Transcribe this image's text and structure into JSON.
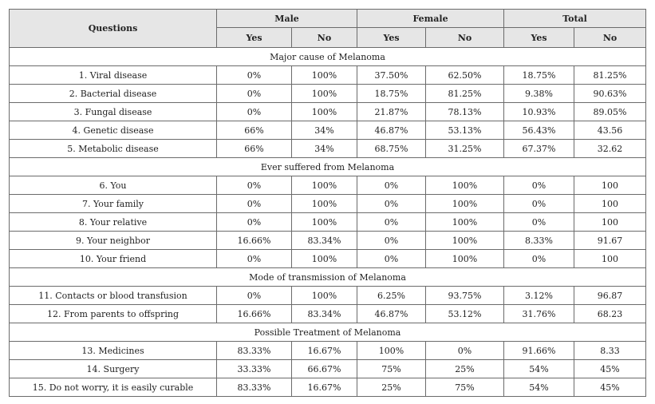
{
  "header": {
    "questions": "Questions",
    "groups": [
      "Male",
      "Female",
      "Total"
    ],
    "sub": [
      "Yes",
      "No",
      "Yes",
      "No",
      "Yes",
      "No"
    ]
  },
  "sections": [
    {
      "title": "Major cause of Melanoma",
      "rows": [
        {
          "q": "1. Viral disease",
          "v": [
            "0%",
            "100%",
            "37.50%",
            "62.50%",
            "18.75%",
            "81.25%"
          ]
        },
        {
          "q": "2. Bacterial disease",
          "v": [
            "0%",
            "100%",
            "18.75%",
            "81.25%",
            "9.38%",
            "90.63%"
          ]
        },
        {
          "q": "3. Fungal disease",
          "v": [
            "0%",
            "100%",
            "21.87%",
            "78.13%",
            "10.93%",
            "89.05%"
          ]
        },
        {
          "q": "4. Genetic disease",
          "v": [
            "66%",
            "34%",
            "46.87%",
            "53.13%",
            "56.43%",
            "43.56"
          ]
        },
        {
          "q": "5. Metabolic disease",
          "v": [
            "66%",
            "34%",
            "68.75%",
            "31.25%",
            "67.37%",
            "32.62"
          ]
        }
      ]
    },
    {
      "title": "Ever suffered from Melanoma",
      "rows": [
        {
          "q": "6. You",
          "v": [
            "0%",
            "100%",
            "0%",
            "100%",
            "0%",
            "100"
          ]
        },
        {
          "q": "7. Your family",
          "v": [
            "0%",
            "100%",
            "0%",
            "100%",
            "0%",
            "100"
          ]
        },
        {
          "q": "8. Your relative",
          "v": [
            "0%",
            "100%",
            "0%",
            "100%",
            "0%",
            "100"
          ]
        },
        {
          "q": "9. Your neighbor",
          "v": [
            "16.66%",
            "83.34%",
            "0%",
            "100%",
            "8.33%",
            "91.67"
          ]
        },
        {
          "q": "10. Your friend",
          "v": [
            "0%",
            "100%",
            "0%",
            "100%",
            "0%",
            "100"
          ]
        }
      ]
    },
    {
      "title": "Mode of transmission of Melanoma",
      "rows": [
        {
          "q": "11. Contacts or blood transfusion",
          "v": [
            "0%",
            "100%",
            "6.25%",
            "93.75%",
            "3.12%",
            "96.87"
          ]
        },
        {
          "q": "12. From parents to offspring",
          "v": [
            "16.66%",
            "83.34%",
            "46.87%",
            "53.12%",
            "31.76%",
            "68.23"
          ]
        }
      ]
    },
    {
      "title": "Possible Treatment of Melanoma",
      "rows": [
        {
          "q": "13. Medicines",
          "v": [
            "83.33%",
            "16.67%",
            "100%",
            "0%",
            "91.66%",
            "8.33"
          ]
        },
        {
          "q": "14. Surgery",
          "v": [
            "33.33%",
            "66.67%",
            "75%",
            "25%",
            "54%",
            "45%"
          ]
        },
        {
          "q": "15. Do not worry, it is easily curable",
          "v": [
            "83.33%",
            "16.67%",
            "25%",
            "75%",
            "54%",
            "45%"
          ]
        }
      ]
    }
  ]
}
